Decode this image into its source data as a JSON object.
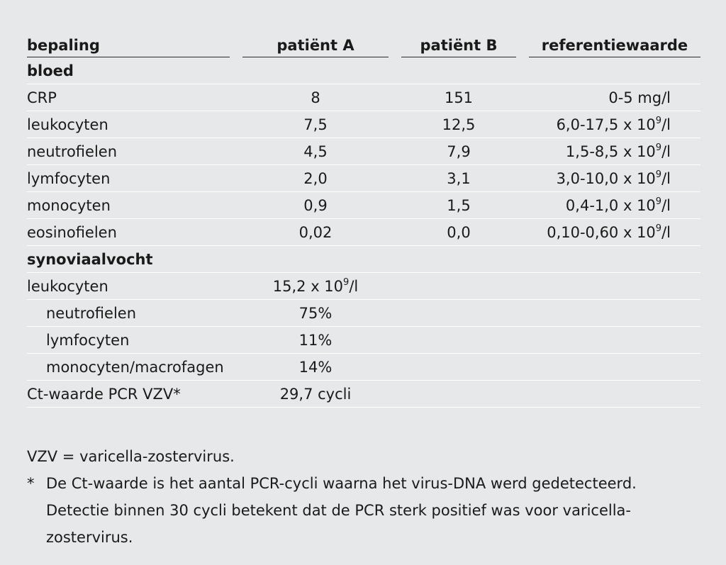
{
  "table": {
    "headers": [
      "bepaling",
      "patiënt A",
      "patiënt B",
      "referentiewaarde"
    ],
    "sections": [
      {
        "title": "bloed",
        "rows": [
          {
            "name": "CRP",
            "a": "8",
            "b": "151",
            "ref": "0-5 mg/l",
            "ref_sup": "",
            "ref_suffix": ""
          },
          {
            "name": "leukocyten",
            "a": "7,5",
            "b": "12,5",
            "ref": "6,0-17,5 x 10",
            "ref_sup": "9",
            "ref_suffix": "/l"
          },
          {
            "name": "neutrofielen",
            "a": "4,5",
            "b": "7,9",
            "ref": "1,5-8,5 x 10",
            "ref_sup": "9",
            "ref_suffix": "/l"
          },
          {
            "name": "lymfocyten",
            "a": "2,0",
            "b": "3,1",
            "ref": "3,0-10,0 x 10",
            "ref_sup": "9",
            "ref_suffix": "/l"
          },
          {
            "name": "monocyten",
            "a": "0,9",
            "b": "1,5",
            "ref": "0,4-1,0 x 10",
            "ref_sup": "9",
            "ref_suffix": "/l"
          },
          {
            "name": "eosinofielen",
            "a": "0,02",
            "b": "0,0",
            "ref": "0,10-0,60 x 10",
            "ref_sup": "9",
            "ref_suffix": "/l"
          }
        ]
      },
      {
        "title": "synoviaalvocht",
        "rows": [
          {
            "name": "leukocyten",
            "indent": false,
            "a": "15,2 x 10",
            "a_sup": "9",
            "a_suffix": "/l"
          },
          {
            "name": "neutrofielen",
            "indent": true,
            "a": "75%"
          },
          {
            "name": "lymfocyten",
            "indent": true,
            "a": "11%"
          },
          {
            "name": "monocyten/macrofagen",
            "indent": true,
            "a": "14%"
          },
          {
            "name": "Ct-waarde PCR VZV*",
            "indent": false,
            "a": "29,7 cycli"
          }
        ]
      }
    ]
  },
  "notes": {
    "abbrev": "VZV = varicella-zostervirus.",
    "footnote_mark": "*",
    "footnote_text": "De Ct-waarde is het aantal PCR-cycli waarna het virus-DNA werd gedetecteerd. Detectie binnen 30 cycli betekent dat de PCR sterk positief was voor varicella-zostervirus."
  }
}
